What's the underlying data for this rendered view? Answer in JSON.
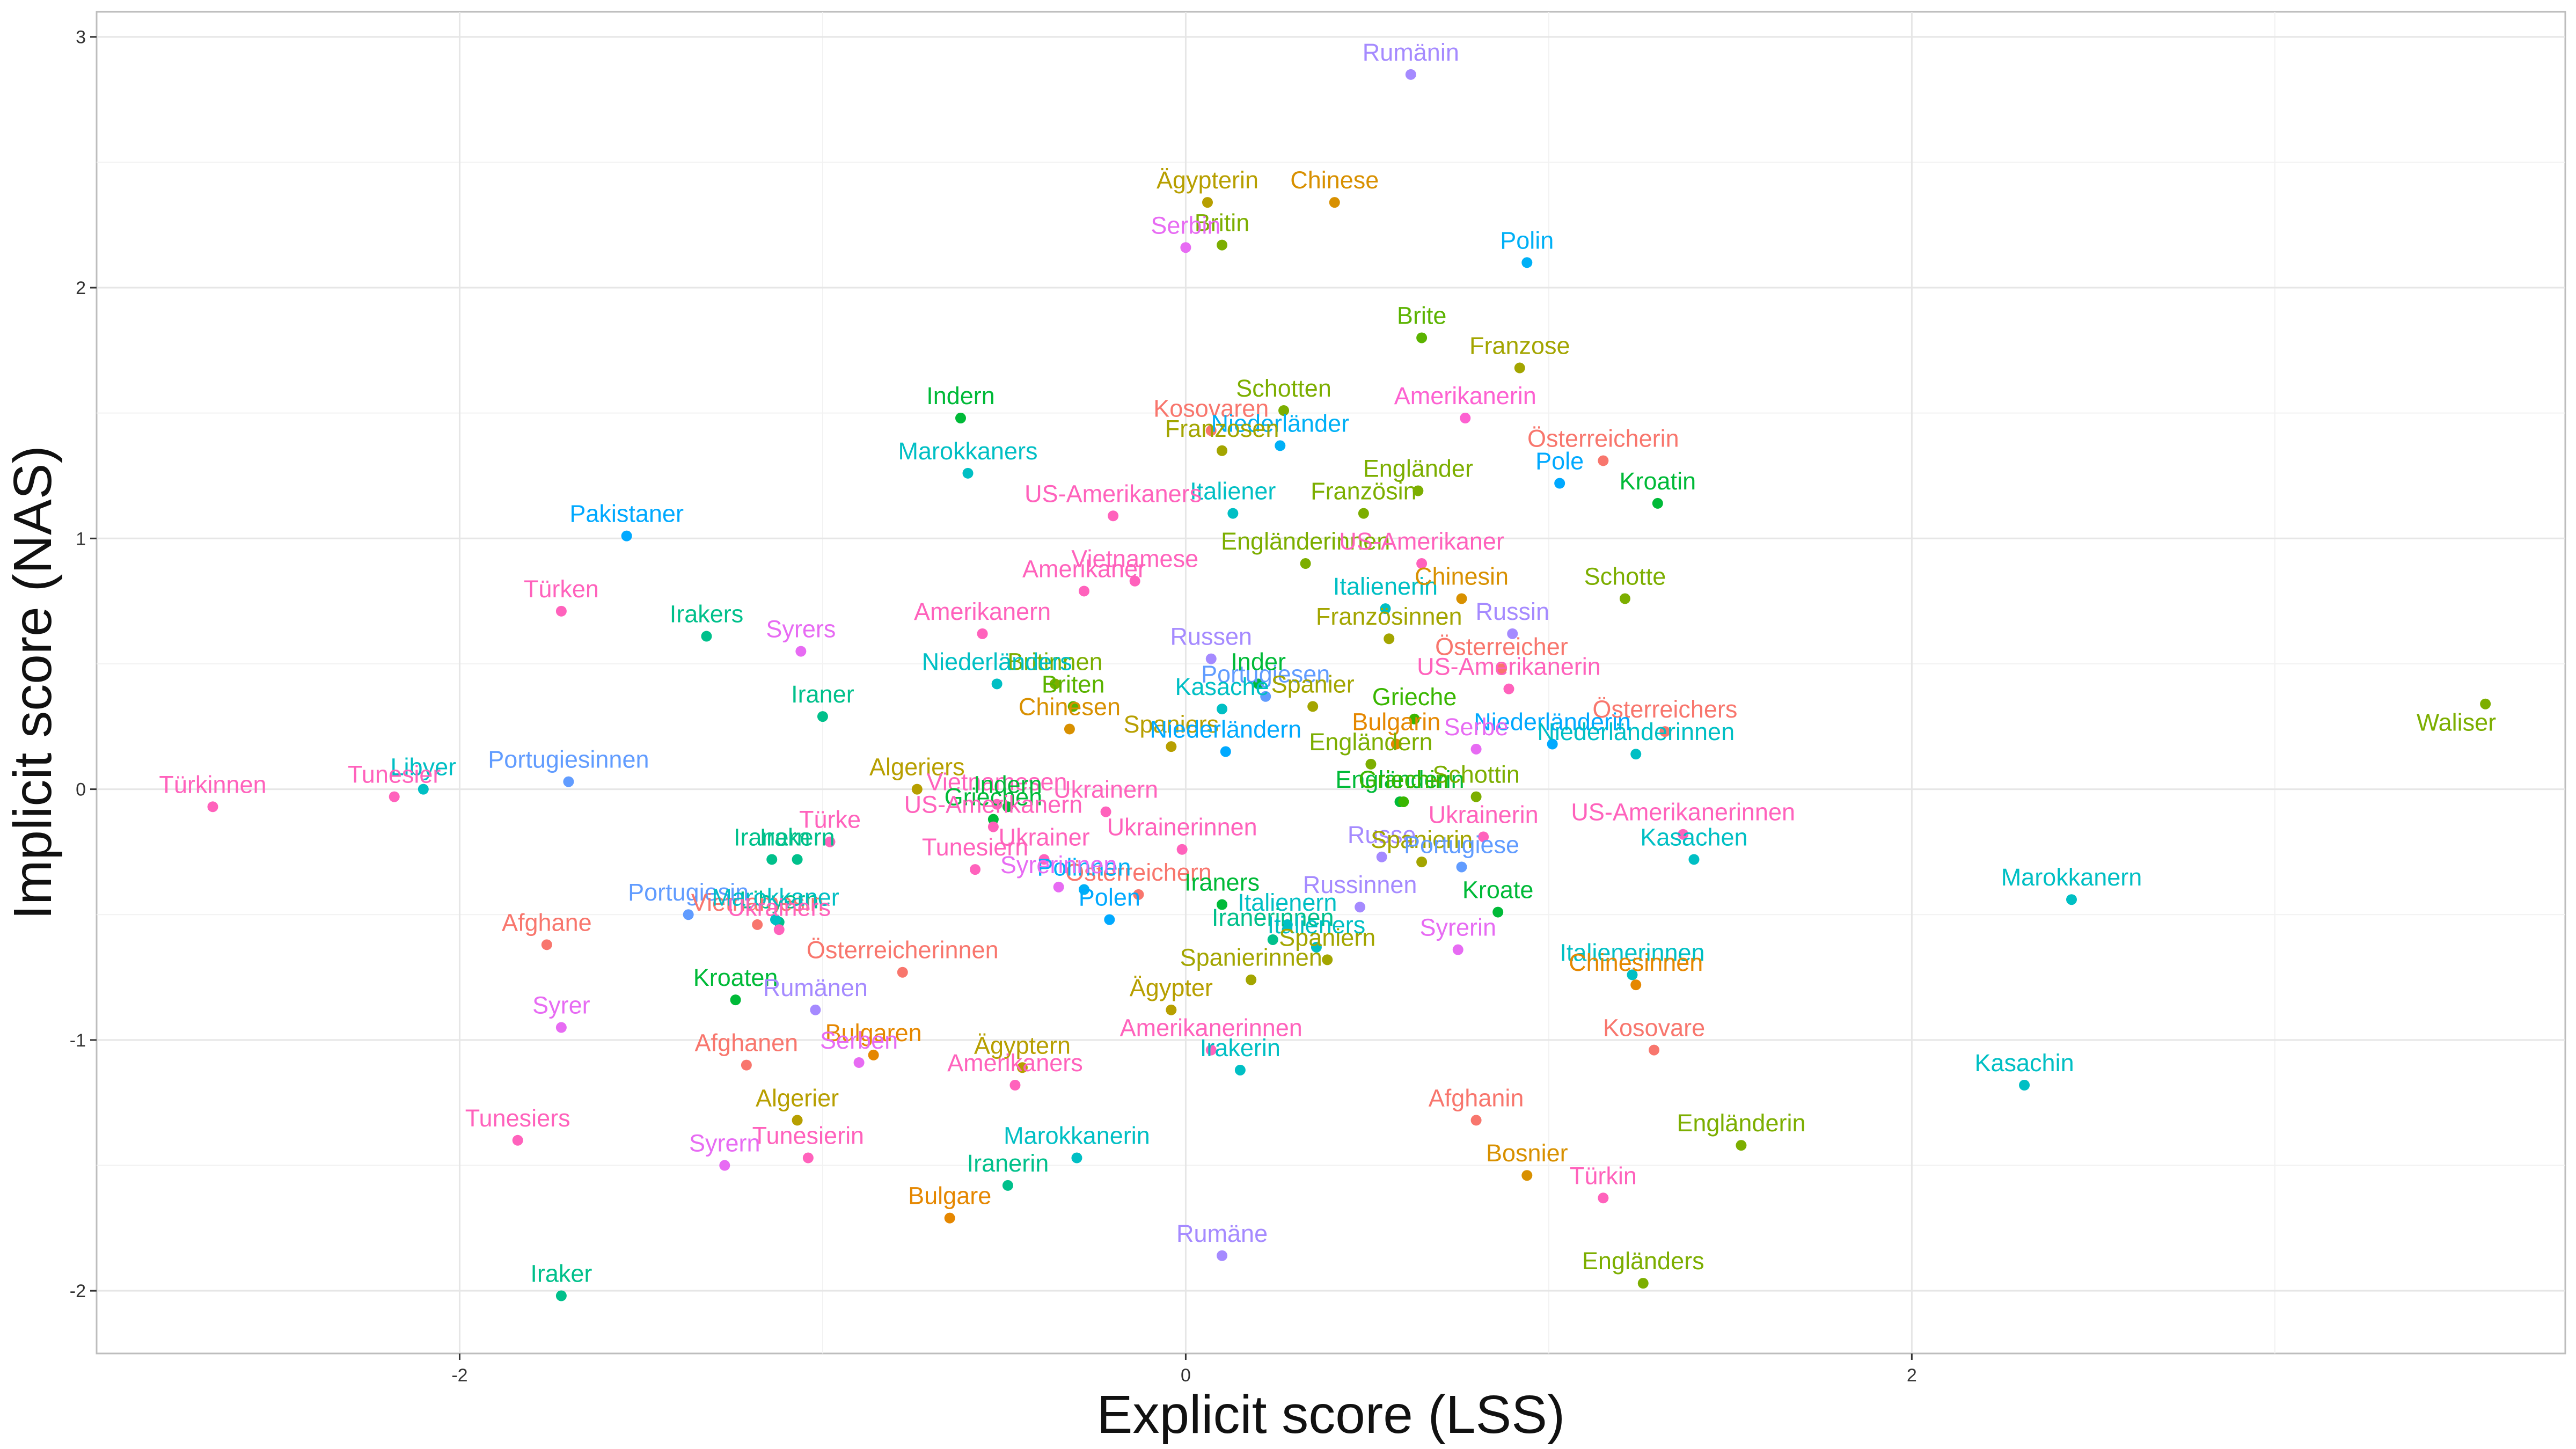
{
  "chart_data": {
    "type": "scatter",
    "title": "",
    "xlabel": "Explicit score (LSS)",
    "ylabel": "Implicit score (NAS)",
    "xlim": [
      -3.0,
      3.8
    ],
    "ylim": [
      -2.25,
      3.1
    ],
    "xticks": [
      -2,
      0,
      2
    ],
    "yticks": [
      -2,
      -1,
      0,
      1,
      2,
      3
    ],
    "xtick_labels": [
      "-2",
      "0",
      "2"
    ],
    "ytick_labels": [
      "-2",
      "-1",
      "0",
      "1",
      "2",
      "3"
    ],
    "grid": true,
    "legend": "none",
    "points": [
      {
        "label": "Rumänin",
        "x": 0.62,
        "y": 2.85,
        "color": "#a58aff"
      },
      {
        "label": "Ägypterin",
        "x": 0.06,
        "y": 2.34,
        "color": "#b79f00"
      },
      {
        "label": "Chinese",
        "x": 0.41,
        "y": 2.34,
        "color": "#d89000"
      },
      {
        "label": "Britin",
        "x": 0.1,
        "y": 2.17,
        "color": "#7cae00"
      },
      {
        "label": "Serbin",
        "x": 0.0,
        "y": 2.16,
        "color": "#e76bf3"
      },
      {
        "label": "Polin",
        "x": 0.94,
        "y": 2.1,
        "color": "#00b0f6"
      },
      {
        "label": "Brite",
        "x": 0.65,
        "y": 1.8,
        "color": "#5bb300"
      },
      {
        "label": "Franzose",
        "x": 0.92,
        "y": 1.68,
        "color": "#a3a500"
      },
      {
        "label": "Indern",
        "x": -0.62,
        "y": 1.48,
        "color": "#00ba38"
      },
      {
        "label": "Schotten",
        "x": 0.27,
        "y": 1.51,
        "color": "#7cae00"
      },
      {
        "label": "Amerikanerin",
        "x": 0.77,
        "y": 1.48,
        "color": "#fd61d1"
      },
      {
        "label": "Kosovaren",
        "x": 0.07,
        "y": 1.43,
        "color": "#f8766d"
      },
      {
        "label": "Niederländer",
        "x": 0.26,
        "y": 1.37,
        "color": "#00b0f6"
      },
      {
        "label": "Franzosen",
        "x": 0.1,
        "y": 1.35,
        "color": "#a3a500"
      },
      {
        "label": "Österreicherin",
        "x": 1.15,
        "y": 1.31,
        "color": "#f8766d"
      },
      {
        "label": "Engländer",
        "x": 0.64,
        "y": 1.19,
        "color": "#7cae00"
      },
      {
        "label": "Marokkaners",
        "x": -0.6,
        "y": 1.26,
        "color": "#00bfc4"
      },
      {
        "label": "Pole",
        "x": 1.03,
        "y": 1.22,
        "color": "#00a9ff"
      },
      {
        "label": "Italiener",
        "x": 0.13,
        "y": 1.1,
        "color": "#00bfc4"
      },
      {
        "label": "Französin",
        "x": 0.49,
        "y": 1.1,
        "color": "#7cae00"
      },
      {
        "label": "Kroatin",
        "x": 1.3,
        "y": 1.14,
        "color": "#00ba38"
      },
      {
        "label": "US-Amerikaners",
        "x": -0.2,
        "y": 1.09,
        "color": "#ff62bc"
      },
      {
        "label": "Pakistaner",
        "x": -1.54,
        "y": 1.01,
        "color": "#00a9ff"
      },
      {
        "label": "Engländerinnen",
        "x": 0.33,
        "y": 0.9,
        "color": "#7cae00"
      },
      {
        "label": "US-Amerikaner",
        "x": 0.65,
        "y": 0.9,
        "color": "#ff62bc"
      },
      {
        "label": "Vietnamese",
        "x": -0.14,
        "y": 0.83,
        "color": "#ff62bc"
      },
      {
        "label": "Italienerin",
        "x": 0.55,
        "y": 0.72,
        "color": "#00bfc4"
      },
      {
        "label": "Chinesin",
        "x": 0.76,
        "y": 0.76,
        "color": "#d89000"
      },
      {
        "label": "Schotte",
        "x": 1.21,
        "y": 0.76,
        "color": "#7cae00"
      },
      {
        "label": "Amerikaner",
        "x": -0.28,
        "y": 0.79,
        "color": "#ff62bc"
      },
      {
        "label": "Türken",
        "x": -1.72,
        "y": 0.71,
        "color": "#ff62bc"
      },
      {
        "label": "Irakers",
        "x": -1.32,
        "y": 0.61,
        "color": "#00c08b"
      },
      {
        "label": "Französinnen",
        "x": 0.56,
        "y": 0.6,
        "color": "#a3a500"
      },
      {
        "label": "Russin",
        "x": 0.9,
        "y": 0.62,
        "color": "#a58aff"
      },
      {
        "label": "Amerikanern",
        "x": -0.56,
        "y": 0.62,
        "color": "#ff62bc"
      },
      {
        "label": "Syrers",
        "x": -1.06,
        "y": 0.55,
        "color": "#e76bf3"
      },
      {
        "label": "Russen",
        "x": 0.07,
        "y": 0.52,
        "color": "#a58aff"
      },
      {
        "label": "Portugiesen",
        "x": 0.22,
        "y": 0.37,
        "color": "#619cff"
      },
      {
        "label": "Österreicher",
        "x": 0.87,
        "y": 0.48,
        "color": "#f8766d"
      },
      {
        "label": "US-Amerikanerin",
        "x": 0.89,
        "y": 0.4,
        "color": "#ff62bc"
      },
      {
        "label": "Britinnen",
        "x": -0.36,
        "y": 0.42,
        "color": "#7cae00"
      },
      {
        "label": "Niederländers",
        "x": -0.52,
        "y": 0.42,
        "color": "#00bfc4"
      },
      {
        "label": "Inder",
        "x": 0.2,
        "y": 0.42,
        "color": "#00ba38"
      },
      {
        "label": "Briten",
        "x": -0.31,
        "y": 0.33,
        "color": "#5bb300"
      },
      {
        "label": "Spanier",
        "x": 0.35,
        "y": 0.33,
        "color": "#a3a500"
      },
      {
        "label": "Kasache",
        "x": 0.1,
        "y": 0.32,
        "color": "#00bfc4"
      },
      {
        "label": "Grieche",
        "x": 0.63,
        "y": 0.28,
        "color": "#39b600"
      },
      {
        "label": "Iraner",
        "x": -1.0,
        "y": 0.29,
        "color": "#00c08b"
      },
      {
        "label": "Chinesen",
        "x": -0.32,
        "y": 0.24,
        "color": "#d89000"
      },
      {
        "label": "Österreichers",
        "x": 1.32,
        "y": 0.23,
        "color": "#f8766d"
      },
      {
        "label": "Niederländerin",
        "x": 1.01,
        "y": 0.18,
        "color": "#00a9ff"
      },
      {
        "label": "Bulgarin",
        "x": 0.58,
        "y": 0.18,
        "color": "#e58700"
      },
      {
        "label": "Spaniers",
        "x": -0.04,
        "y": 0.17,
        "color": "#b79f00"
      },
      {
        "label": "Niederländern",
        "x": 0.11,
        "y": 0.15,
        "color": "#00a9ff"
      },
      {
        "label": "Serbe",
        "x": 0.8,
        "y": 0.16,
        "color": "#e76bf3"
      },
      {
        "label": "Niederländerinnen",
        "x": 1.24,
        "y": 0.14,
        "color": "#00bfc4"
      },
      {
        "label": "Engländern",
        "x": 0.51,
        "y": 0.1,
        "color": "#7cae00"
      },
      {
        "label": "Libyer",
        "x": -2.1,
        "y": 0.0,
        "color": "#00bfc4"
      },
      {
        "label": "Tunesier",
        "x": -2.18,
        "y": -0.03,
        "color": "#ff62bc"
      },
      {
        "label": "Türkinnen",
        "x": -2.68,
        "y": -0.07,
        "color": "#ff62bc"
      },
      {
        "label": "Portugiesinnen",
        "x": -1.7,
        "y": 0.03,
        "color": "#619cff"
      },
      {
        "label": "Algeriers",
        "x": -0.74,
        "y": 0.0,
        "color": "#b79f00"
      },
      {
        "label": "Vietnamesen",
        "x": -0.52,
        "y": -0.06,
        "color": "#ff62bc"
      },
      {
        "label": "Indern",
        "x": -0.49,
        "y": -0.07,
        "color": "#00ba38"
      },
      {
        "label": "Griechen",
        "x": -0.53,
        "y": -0.12,
        "color": "#00ba38"
      },
      {
        "label": "Ukrainern",
        "x": -0.22,
        "y": -0.09,
        "color": "#ff62bc"
      },
      {
        "label": "Engländerin",
        "x": 0.59,
        "y": -0.05,
        "color": "#00ba38"
      },
      {
        "label": "Schottin",
        "x": 0.8,
        "y": -0.03,
        "color": "#7cae00"
      },
      {
        "label": "Griechin",
        "x": 0.6,
        "y": -0.05,
        "color": "#39b600"
      },
      {
        "label": "US-Amerikanerinnen",
        "x": 1.37,
        "y": -0.18,
        "color": "#ff62bc"
      },
      {
        "label": "Türke",
        "x": -0.98,
        "y": -0.21,
        "color": "#ff62bc"
      },
      {
        "label": "Ukrainerinnen",
        "x": -0.01,
        "y": -0.24,
        "color": "#ff62bc"
      },
      {
        "label": "Ukrainer",
        "x": -0.39,
        "y": -0.28,
        "color": "#ff62bc"
      },
      {
        "label": "US-Amerikanern",
        "x": -0.53,
        "y": -0.15,
        "color": "#ff62bc"
      },
      {
        "label": "Iranern",
        "x": -1.14,
        "y": -0.28,
        "color": "#00c08b"
      },
      {
        "label": "Russe",
        "x": 0.54,
        "y": -0.27,
        "color": "#a58aff"
      },
      {
        "label": "Ukrainerin",
        "x": 0.82,
        "y": -0.19,
        "color": "#ff62bc"
      },
      {
        "label": "Spanierin",
        "x": 0.65,
        "y": -0.29,
        "color": "#a3a500"
      },
      {
        "label": "Portugiese",
        "x": 0.76,
        "y": -0.31,
        "color": "#619cff"
      },
      {
        "label": "Kasachen",
        "x": 1.4,
        "y": -0.28,
        "color": "#00bfc4"
      },
      {
        "label": "Tunesiern",
        "x": -0.58,
        "y": -0.32,
        "color": "#ff62bc"
      },
      {
        "label": "Irakern",
        "x": -1.07,
        "y": -0.28,
        "color": "#00c08b"
      },
      {
        "label": "Österreichern",
        "x": -0.13,
        "y": -0.42,
        "color": "#f8766d"
      },
      {
        "label": "Portugiesin",
        "x": -1.37,
        "y": -0.5,
        "color": "#619cff"
      },
      {
        "label": "Polinnen",
        "x": -0.28,
        "y": -0.4,
        "color": "#00b0f6"
      },
      {
        "label": "Italienern",
        "x": 0.28,
        "y": -0.54,
        "color": "#00bfc4"
      },
      {
        "label": "Iraners",
        "x": 0.1,
        "y": -0.46,
        "color": "#00ba38"
      },
      {
        "label": "Libyern",
        "x": -1.12,
        "y": -0.53,
        "color": "#00c08b"
      },
      {
        "label": "Vietnamesin",
        "x": -1.18,
        "y": -0.54,
        "color": "#f8766d"
      },
      {
        "label": "Russinnen",
        "x": 0.48,
        "y": -0.47,
        "color": "#a58aff"
      },
      {
        "label": "Kroate",
        "x": 0.86,
        "y": -0.49,
        "color": "#00ba38"
      },
      {
        "label": "Marokkanern",
        "x": 2.44,
        "y": -0.44,
        "color": "#00bfc4"
      },
      {
        "label": "Polen",
        "x": -0.21,
        "y": -0.52,
        "color": "#00a9ff"
      },
      {
        "label": "Syrerinnen",
        "x": -0.35,
        "y": -0.39,
        "color": "#e76bf3"
      },
      {
        "label": "Afghane",
        "x": -1.76,
        "y": -0.62,
        "color": "#f8766d"
      },
      {
        "label": "Marokkaner",
        "x": -1.13,
        "y": -0.52,
        "color": "#00bfc4"
      },
      {
        "label": "Ukrainers",
        "x": -1.12,
        "y": -0.56,
        "color": "#ff62bc"
      },
      {
        "label": "Iranerinnen",
        "x": 0.24,
        "y": -0.6,
        "color": "#00c08b"
      },
      {
        "label": "Italieners",
        "x": 0.36,
        "y": -0.63,
        "color": "#00bfc4"
      },
      {
        "label": "Syrerin",
        "x": 0.75,
        "y": -0.64,
        "color": "#e76bf3"
      },
      {
        "label": "Italienerinnen",
        "x": 1.23,
        "y": -0.74,
        "color": "#00bfc4"
      },
      {
        "label": "Kroaten",
        "x": -1.24,
        "y": -0.84,
        "color": "#00ba38"
      },
      {
        "label": "Spanierinnen",
        "x": 0.18,
        "y": -0.76,
        "color": "#a3a500"
      },
      {
        "label": "Spaniern",
        "x": 0.39,
        "y": -0.68,
        "color": "#a3a500"
      },
      {
        "label": "Chinesinnen",
        "x": 1.24,
        "y": -0.78,
        "color": "#e58700"
      },
      {
        "label": "Österreicherinnen",
        "x": -0.78,
        "y": -0.73,
        "color": "#f8766d"
      },
      {
        "label": "Ägypter",
        "x": -0.04,
        "y": -0.88,
        "color": "#b79f00"
      },
      {
        "label": "Rumänen",
        "x": -1.02,
        "y": -0.88,
        "color": "#a58aff"
      },
      {
        "label": "Syrer",
        "x": -1.72,
        "y": -0.95,
        "color": "#e76bf3"
      },
      {
        "label": "Bulgaren",
        "x": -0.86,
        "y": -1.06,
        "color": "#e58700"
      },
      {
        "label": "Kosovare",
        "x": 1.29,
        "y": -1.04,
        "color": "#f8766d"
      },
      {
        "label": "Amerikanerinnen",
        "x": 0.07,
        "y": -1.04,
        "color": "#ff62bc"
      },
      {
        "label": "Afghanen",
        "x": -1.21,
        "y": -1.1,
        "color": "#f8766d"
      },
      {
        "label": "Serben",
        "x": -0.9,
        "y": -1.09,
        "color": "#e76bf3"
      },
      {
        "label": "Ägyptern",
        "x": -0.45,
        "y": -1.11,
        "color": "#b79f00"
      },
      {
        "label": "Irakerin",
        "x": 0.15,
        "y": -1.12,
        "color": "#00bfc4"
      },
      {
        "label": "Amerikaners",
        "x": -0.47,
        "y": -1.18,
        "color": "#ff62bc"
      },
      {
        "label": "Kasachin",
        "x": 2.31,
        "y": -1.18,
        "color": "#00bfc4"
      },
      {
        "label": "Tunesiers",
        "x": -1.84,
        "y": -1.4,
        "color": "#ff62bc"
      },
      {
        "label": "Algerier",
        "x": -1.07,
        "y": -1.32,
        "color": "#b79f00"
      },
      {
        "label": "Afghanin",
        "x": 0.8,
        "y": -1.32,
        "color": "#f8766d"
      },
      {
        "label": "Engländerin",
        "x": 1.53,
        "y": -1.42,
        "color": "#7cae00"
      },
      {
        "label": "Tunesierin",
        "x": -1.04,
        "y": -1.47,
        "color": "#ff62bc"
      },
      {
        "label": "Marokkanerin",
        "x": -0.3,
        "y": -1.47,
        "color": "#00bfc4"
      },
      {
        "label": "Syrern",
        "x": -1.27,
        "y": -1.5,
        "color": "#e76bf3"
      },
      {
        "label": "Bosnier",
        "x": 0.94,
        "y": -1.54,
        "color": "#d89000"
      },
      {
        "label": "Iranerin",
        "x": -0.49,
        "y": -1.58,
        "color": "#00c08b"
      },
      {
        "label": "Türkin",
        "x": 1.15,
        "y": -1.63,
        "color": "#ff62bc"
      },
      {
        "label": "Bulgare",
        "x": -0.65,
        "y": -1.71,
        "color": "#e58700"
      },
      {
        "label": "Rumäne",
        "x": 0.1,
        "y": -1.86,
        "color": "#a58aff"
      },
      {
        "label": "Engländers",
        "x": 1.26,
        "y": -1.97,
        "color": "#7cae00"
      },
      {
        "label": "Iraker",
        "x": -1.72,
        "y": -2.02,
        "color": "#00c08b"
      },
      {
        "label": "Waliser",
        "x": 3.58,
        "y": 0.34,
        "color": "#7cae00"
      }
    ]
  }
}
